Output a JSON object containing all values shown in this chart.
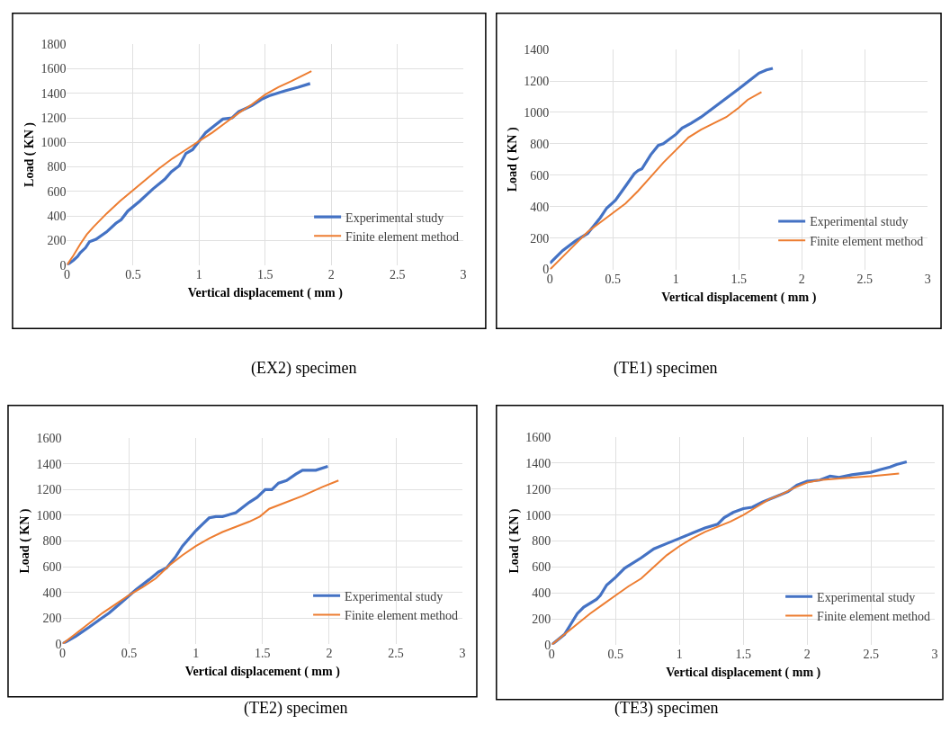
{
  "chart_data": [
    {
      "type": "line",
      "annotations": [
        "(EX2) specimen"
      ],
      "xlabel": "Vertical displacement ( mm )",
      "ylabel": "Load ( KN )",
      "xlim": [
        0,
        3
      ],
      "xticks": [
        0,
        0.5,
        1,
        1.5,
        2,
        2.5,
        3
      ],
      "ylim": [
        0,
        1800
      ],
      "yticks": [
        0,
        200,
        400,
        600,
        800,
        1000,
        1200,
        1400,
        1600,
        1800
      ],
      "grid": true,
      "legend": "bottom right",
      "marker": "none",
      "line_style": "solid",
      "series": [
        {
          "name": "Experimental study",
          "color": "#4472c4",
          "x": [
            0,
            0.05,
            0.08,
            0.1,
            0.14,
            0.17,
            0.22,
            0.3,
            0.37,
            0.41,
            0.46,
            0.55,
            0.65,
            0.74,
            0.79,
            0.85,
            0.9,
            0.95,
            1.0,
            1.05,
            1.12,
            1.18,
            1.25,
            1.3,
            1.4,
            1.47,
            1.53,
            1.65,
            1.75,
            1.84
          ],
          "values": [
            0,
            40,
            70,
            100,
            140,
            190,
            210,
            270,
            340,
            370,
            440,
            520,
            620,
            700,
            760,
            810,
            910,
            940,
            1010,
            1080,
            1140,
            1190,
            1200,
            1250,
            1300,
            1350,
            1380,
            1420,
            1450,
            1480
          ]
        },
        {
          "name": "Finite element method",
          "color": "#ed7d31",
          "x": [
            0,
            0.05,
            0.1,
            0.15,
            0.2,
            0.3,
            0.4,
            0.5,
            0.6,
            0.7,
            0.8,
            0.9,
            1.0,
            1.1,
            1.2,
            1.3,
            1.4,
            1.5,
            1.6,
            1.7,
            1.85
          ],
          "values": [
            0,
            80,
            170,
            250,
            310,
            420,
            520,
            610,
            700,
            790,
            870,
            940,
            1010,
            1080,
            1160,
            1240,
            1310,
            1390,
            1450,
            1500,
            1580
          ]
        }
      ]
    },
    {
      "type": "line",
      "annotations": [
        "(TE1) specimen"
      ],
      "xlabel": "Vertical displacement ( mm )",
      "ylabel": "Load ( KN )",
      "xlim": [
        0,
        3
      ],
      "xticks": [
        0,
        0.5,
        1,
        1.5,
        2,
        2.5,
        3
      ],
      "ylim": [
        0,
        1400
      ],
      "yticks": [
        0,
        200,
        400,
        600,
        800,
        1000,
        1200,
        1400
      ],
      "grid": true,
      "legend": "bottom right",
      "marker": "none",
      "line_style": "solid",
      "series": [
        {
          "name": "Experimental study",
          "color": "#4472c4",
          "x": [
            0,
            0.05,
            0.1,
            0.2,
            0.3,
            0.35,
            0.4,
            0.45,
            0.52,
            0.6,
            0.67,
            0.7,
            0.73,
            0.8,
            0.86,
            0.9,
            1.0,
            1.05,
            1.12,
            1.2,
            1.3,
            1.4,
            1.5,
            1.58,
            1.66,
            1.72,
            1.77
          ],
          "values": [
            40,
            80,
            120,
            180,
            230,
            280,
            330,
            390,
            440,
            530,
            610,
            630,
            640,
            730,
            790,
            800,
            860,
            900,
            930,
            970,
            1030,
            1090,
            1150,
            1200,
            1250,
            1270,
            1280
          ]
        },
        {
          "name": "Finite element method",
          "color": "#ed7d31",
          "x": [
            0,
            0.1,
            0.2,
            0.3,
            0.4,
            0.5,
            0.6,
            0.7,
            0.8,
            0.9,
            1.0,
            1.1,
            1.2,
            1.3,
            1.4,
            1.5,
            1.57,
            1.68
          ],
          "values": [
            0,
            80,
            160,
            240,
            300,
            360,
            420,
            500,
            590,
            680,
            760,
            840,
            890,
            930,
            970,
            1030,
            1080,
            1130
          ]
        }
      ]
    },
    {
      "type": "line",
      "annotations": [
        "(TE2) specimen"
      ],
      "xlabel": "Vertical displacement ( mm )",
      "ylabel": "Load ( KN )",
      "xlim": [
        0,
        3
      ],
      "xticks": [
        0,
        0.5,
        1,
        1.5,
        2,
        2.5,
        3
      ],
      "ylim": [
        0,
        1600
      ],
      "yticks": [
        0,
        200,
        400,
        600,
        800,
        1000,
        1200,
        1400,
        1600
      ],
      "grid": true,
      "legend": "bottom right",
      "marker": "none",
      "line_style": "solid",
      "series": [
        {
          "name": "Experimental study",
          "color": "#4472c4",
          "x": [
            0,
            0.1,
            0.2,
            0.28,
            0.35,
            0.45,
            0.55,
            0.65,
            0.72,
            0.78,
            0.85,
            0.9,
            1.0,
            1.05,
            1.1,
            1.15,
            1.2,
            1.3,
            1.35,
            1.4,
            1.46,
            1.52,
            1.57,
            1.62,
            1.68,
            1.75,
            1.8,
            1.9,
            1.99
          ],
          "values": [
            0,
            60,
            130,
            190,
            240,
            330,
            420,
            500,
            560,
            590,
            680,
            760,
            880,
            930,
            980,
            990,
            990,
            1020,
            1060,
            1100,
            1140,
            1200,
            1200,
            1250,
            1270,
            1320,
            1350,
            1350,
            1380
          ]
        },
        {
          "name": "Finite element method",
          "color": "#ed7d31",
          "x": [
            0,
            0.1,
            0.2,
            0.3,
            0.4,
            0.5,
            0.6,
            0.7,
            0.8,
            0.9,
            1.0,
            1.1,
            1.2,
            1.3,
            1.4,
            1.48,
            1.55,
            1.65,
            1.8,
            1.95,
            2.07
          ],
          "values": [
            0,
            80,
            160,
            240,
            310,
            380,
            440,
            510,
            610,
            690,
            760,
            820,
            870,
            910,
            950,
            990,
            1050,
            1090,
            1150,
            1220,
            1270
          ]
        }
      ]
    },
    {
      "type": "line",
      "annotations": [
        "(TE3) specimen"
      ],
      "xlabel": "Vertical displacement ( mm )",
      "ylabel": "Load ( KN )",
      "xlim": [
        0,
        3
      ],
      "xticks": [
        0,
        0.5,
        1,
        1.5,
        2,
        2.5,
        3
      ],
      "ylim": [
        0,
        1600
      ],
      "yticks": [
        0,
        200,
        400,
        600,
        800,
        1000,
        1200,
        1400,
        1600
      ],
      "grid": true,
      "legend": "bottom right",
      "marker": "none",
      "line_style": "solid",
      "series": [
        {
          "name": "Experimental study",
          "color": "#4472c4",
          "x": [
            0,
            0.1,
            0.15,
            0.2,
            0.25,
            0.35,
            0.38,
            0.43,
            0.5,
            0.57,
            0.62,
            0.7,
            0.8,
            0.9,
            1.0,
            1.1,
            1.2,
            1.3,
            1.35,
            1.42,
            1.5,
            1.57,
            1.65,
            1.75,
            1.85,
            1.92,
            2.0,
            2.1,
            2.18,
            2.25,
            2.35,
            2.5,
            2.57,
            2.65,
            2.7,
            2.78
          ],
          "values": [
            0,
            80,
            160,
            240,
            290,
            350,
            380,
            460,
            520,
            590,
            620,
            670,
            740,
            780,
            820,
            860,
            900,
            930,
            980,
            1020,
            1050,
            1060,
            1100,
            1140,
            1180,
            1230,
            1260,
            1270,
            1300,
            1290,
            1310,
            1330,
            1350,
            1370,
            1390,
            1410
          ]
        },
        {
          "name": "Finite element method",
          "color": "#ed7d31",
          "x": [
            0,
            0.1,
            0.2,
            0.3,
            0.4,
            0.5,
            0.6,
            0.7,
            0.8,
            0.9,
            1.0,
            1.1,
            1.2,
            1.3,
            1.4,
            1.5,
            1.6,
            1.7,
            1.8,
            1.9,
            2.0,
            2.1,
            2.3,
            2.5,
            2.72
          ],
          "values": [
            0,
            80,
            160,
            240,
            310,
            380,
            450,
            510,
            600,
            690,
            760,
            820,
            870,
            910,
            950,
            1000,
            1060,
            1120,
            1160,
            1210,
            1250,
            1270,
            1285,
            1300,
            1320
          ]
        }
      ]
    }
  ]
}
